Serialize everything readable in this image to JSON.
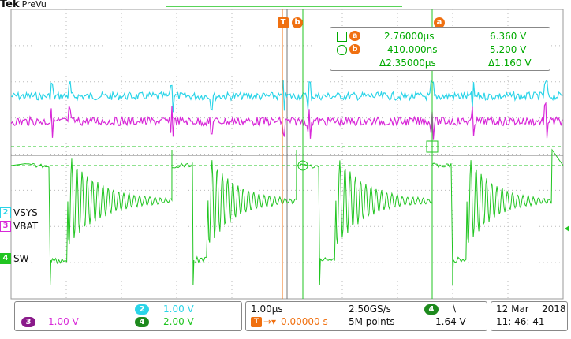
{
  "header": {
    "brand": "Tek",
    "mode": "PreVu"
  },
  "trigger": {
    "marker": "T",
    "cursor_b_marker": "b",
    "cursor_a_marker": "a"
  },
  "channels": [
    {
      "id": "2",
      "name": "VSYS",
      "color": "#2ad4e8"
    },
    {
      "id": "3",
      "name": "VBAT",
      "color": "#d828d8"
    },
    {
      "id": "4",
      "name": "SW",
      "color": "#21c521"
    }
  ],
  "cursor_readout": {
    "a_label": "a",
    "b_label": "b",
    "a_time": "2.76000µs",
    "a_value": "6.360 V",
    "b_time": "410.000ns",
    "b_value": "5.200 V",
    "delta_time": "Δ2.35000µs",
    "delta_value": "Δ1.160 V"
  },
  "status_bar": {
    "ch2_id": "2",
    "ch2_scale": "1.00 V",
    "ch3_id": "3",
    "ch3_scale": "1.00 V",
    "ch4_id": "4",
    "ch4_scale": "2.00 V",
    "timebase": "1.00µs",
    "sample_rate": "2.50GS/s",
    "trigger_position": "0.00000 s",
    "record_length": "5M points",
    "trigger_channel": "4",
    "trigger_slope": "\\",
    "trigger_level": "1.64 V",
    "date": "12 Mar",
    "year": "2018",
    "time": "11: 46: 41"
  },
  "colors": {
    "grid": "#888888",
    "accent": "#f07010",
    "cursor": "#21c521",
    "vsys": "#2ad4e8",
    "vbat": "#d828d8",
    "sw": "#21c521"
  }
}
